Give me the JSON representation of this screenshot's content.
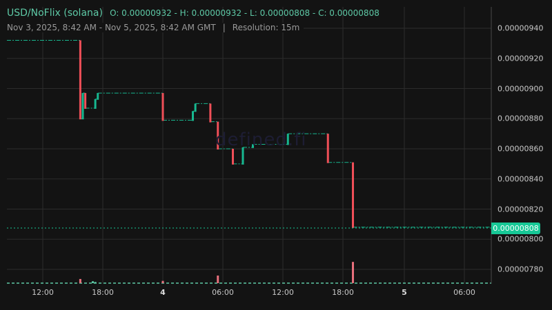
{
  "header": {
    "pair": "USD/NoFlix (solana)",
    "ohlc": "O: 0.00000932 - H: 0.00000932 - L: 0.00000808 - C: 0.00000808",
    "range": "Nov 3, 2025, 8:42 AM - Nov 5, 2025, 8:42 AM GMT",
    "separator": "|",
    "resolution": "Resolution: 15m"
  },
  "watermark": "defined.fi",
  "last_price_tag": "0.00000808",
  "colors": {
    "up": "#17b890",
    "down": "#f04f58",
    "grid": "#2c2c2c",
    "background": "#131313",
    "accent": "#17c896"
  },
  "y_axis_labels": [
    "0.00000940",
    "0.00000920",
    "0.00000900",
    "0.00000880",
    "0.00000860",
    "0.00000840",
    "0.00000820",
    "0.00000800",
    "0.00000780"
  ],
  "x_axis_labels": [
    {
      "text": "12:00",
      "bold": false
    },
    {
      "text": "18:00",
      "bold": false
    },
    {
      "text": "4",
      "bold": true
    },
    {
      "text": "06:00",
      "bold": false
    },
    {
      "text": "12:00",
      "bold": false
    },
    {
      "text": "18:00",
      "bold": false
    },
    {
      "text": "5",
      "bold": true
    },
    {
      "text": "06:00",
      "bold": false
    }
  ],
  "chart_data": {
    "type": "candlestick",
    "title": "USD/NoFlix (solana)",
    "subtitle": "Nov 3, 2025, 8:42 AM - Nov 5, 2025, 8:42 AM GMT | Resolution: 15m",
    "xlabel": "",
    "ylabel": "",
    "ylim": [
      7.7e-06,
      9.48e-06
    ],
    "grid": true,
    "legend": "none",
    "x_ticks": [
      "12:00",
      "18:00",
      "4",
      "06:00",
      "12:00",
      "18:00",
      "5",
      "06:00"
    ],
    "y_ticks": [
      9.4e-06,
      9.2e-06,
      9e-06,
      8.8e-06,
      8.6e-06,
      8.4e-06,
      8.2e-06,
      8e-06,
      7.8e-06
    ],
    "last_price": 8.08e-06,
    "ohlc_summary": {
      "open": 9.32e-06,
      "high": 9.32e-06,
      "low": 8.08e-06,
      "close": 8.08e-06
    },
    "price_steps": [
      {
        "time": "Nov 3 08:42",
        "price": 9.32e-06
      },
      {
        "time": "Nov 3 15:45",
        "price": 8.8e-06
      },
      {
        "time": "Nov 3 16:00",
        "price": 8.97e-06
      },
      {
        "time": "Nov 3 16:15",
        "price": 8.87e-06
      },
      {
        "time": "Nov 3 17:15",
        "price": 8.93e-06
      },
      {
        "time": "Nov 3 17:30",
        "price": 8.97e-06
      },
      {
        "time": "Nov 4 00:00",
        "price": 8.79e-06
      },
      {
        "time": "Nov 4 03:00",
        "price": 8.85e-06
      },
      {
        "time": "Nov 4 03:15",
        "price": 8.9e-06
      },
      {
        "time": "Nov 4 04:45",
        "price": 8.78e-06
      },
      {
        "time": "Nov 4 05:30",
        "price": 8.6e-06
      },
      {
        "time": "Nov 4 07:00",
        "price": 8.5e-06
      },
      {
        "time": "Nov 4 08:00",
        "price": 8.61e-06
      },
      {
        "time": "Nov 4 09:00",
        "price": 8.63e-06
      },
      {
        "time": "Nov 4 12:30",
        "price": 8.7e-06
      },
      {
        "time": "Nov 4 16:30",
        "price": 8.51e-06
      },
      {
        "time": "Nov 4 19:00",
        "price": 8.08e-06
      }
    ],
    "volume_spikes": [
      {
        "time": "Nov 3 15:45",
        "dir": "down",
        "rel": 0.55
      },
      {
        "time": "Nov 3 17:00",
        "dir": "up",
        "rel": 0.25
      },
      {
        "time": "Nov 3 17:15",
        "dir": "up",
        "rel": 0.15
      },
      {
        "time": "Nov 4 00:00",
        "dir": "down",
        "rel": 0.3
      },
      {
        "time": "Nov 4 05:30",
        "dir": "down",
        "rel": 1.0
      },
      {
        "time": "Nov 4 19:00",
        "dir": "down",
        "rel": 2.8
      }
    ]
  }
}
